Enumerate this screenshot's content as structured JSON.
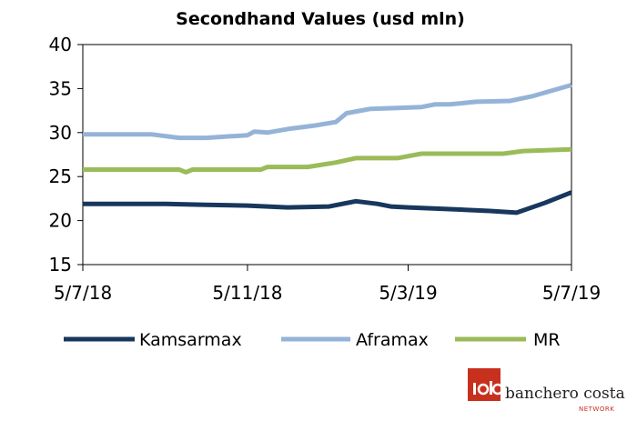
{
  "chart_data": {
    "type": "line",
    "title": "Secondhand Values (usd mln)",
    "xlabel": "",
    "ylabel": "",
    "ylim": [
      15,
      40
    ],
    "yticks": [
      "15",
      "20",
      "25",
      "30",
      "35",
      "40"
    ],
    "xlim": [
      "2018-07-05",
      "2019-07-05"
    ],
    "xticks": [
      {
        "date": "2018-07-05",
        "label": "5/7/18"
      },
      {
        "date": "2018-11-05",
        "label": "5/11/18"
      },
      {
        "date": "2019-03-05",
        "label": "5/3/19"
      },
      {
        "date": "2019-07-05",
        "label": "5/7/19"
      }
    ],
    "grid": false,
    "legend_position": "bottom",
    "series": [
      {
        "name": "Kamsarmax",
        "color": "#17375e",
        "points": [
          [
            "2018-07-05",
            21.9
          ],
          [
            "2018-08-05",
            21.9
          ],
          [
            "2018-09-05",
            21.9
          ],
          [
            "2018-10-05",
            21.8
          ],
          [
            "2018-11-05",
            21.7
          ],
          [
            "2018-12-05",
            21.5
          ],
          [
            "2019-01-05",
            21.6
          ],
          [
            "2019-01-25",
            22.2
          ],
          [
            "2019-02-10",
            21.9
          ],
          [
            "2019-02-20",
            21.6
          ],
          [
            "2019-03-05",
            21.5
          ],
          [
            "2019-04-05",
            21.3
          ],
          [
            "2019-05-05",
            21.1
          ],
          [
            "2019-05-25",
            20.9
          ],
          [
            "2019-06-15",
            22.0
          ],
          [
            "2019-07-05",
            23.2
          ]
        ]
      },
      {
        "name": "Aframax",
        "color": "#95b3d7",
        "points": [
          [
            "2018-07-05",
            29.8
          ],
          [
            "2018-08-05",
            29.8
          ],
          [
            "2018-08-25",
            29.8
          ],
          [
            "2018-09-15",
            29.4
          ],
          [
            "2018-10-05",
            29.4
          ],
          [
            "2018-10-25",
            29.6
          ],
          [
            "2018-11-05",
            29.7
          ],
          [
            "2018-11-10",
            30.1
          ],
          [
            "2018-11-20",
            30.0
          ],
          [
            "2018-12-05",
            30.4
          ],
          [
            "2018-12-25",
            30.8
          ],
          [
            "2019-01-10",
            31.2
          ],
          [
            "2019-01-18",
            32.2
          ],
          [
            "2019-02-05",
            32.7
          ],
          [
            "2019-02-25",
            32.8
          ],
          [
            "2019-03-15",
            32.9
          ],
          [
            "2019-03-25",
            33.2
          ],
          [
            "2019-04-05",
            33.2
          ],
          [
            "2019-04-25",
            33.5
          ],
          [
            "2019-05-20",
            33.6
          ],
          [
            "2019-06-05",
            34.1
          ],
          [
            "2019-07-05",
            35.4
          ]
        ]
      },
      {
        "name": "MR",
        "color": "#9bbb59",
        "points": [
          [
            "2018-07-05",
            25.8
          ],
          [
            "2018-08-05",
            25.8
          ],
          [
            "2018-09-05",
            25.8
          ],
          [
            "2018-09-15",
            25.8
          ],
          [
            "2018-09-20",
            25.5
          ],
          [
            "2018-09-25",
            25.8
          ],
          [
            "2018-11-05",
            25.8
          ],
          [
            "2018-11-15",
            25.8
          ],
          [
            "2018-11-20",
            26.1
          ],
          [
            "2018-12-20",
            26.1
          ],
          [
            "2019-01-10",
            26.6
          ],
          [
            "2019-01-25",
            27.1
          ],
          [
            "2019-02-25",
            27.1
          ],
          [
            "2019-03-15",
            27.6
          ],
          [
            "2019-04-15",
            27.6
          ],
          [
            "2019-05-15",
            27.6
          ],
          [
            "2019-05-30",
            27.9
          ],
          [
            "2019-07-05",
            28.1
          ]
        ]
      }
    ]
  },
  "branding": {
    "name": "banchero costa",
    "sub": "NETWORK",
    "accent_color": "#c8301e"
  }
}
